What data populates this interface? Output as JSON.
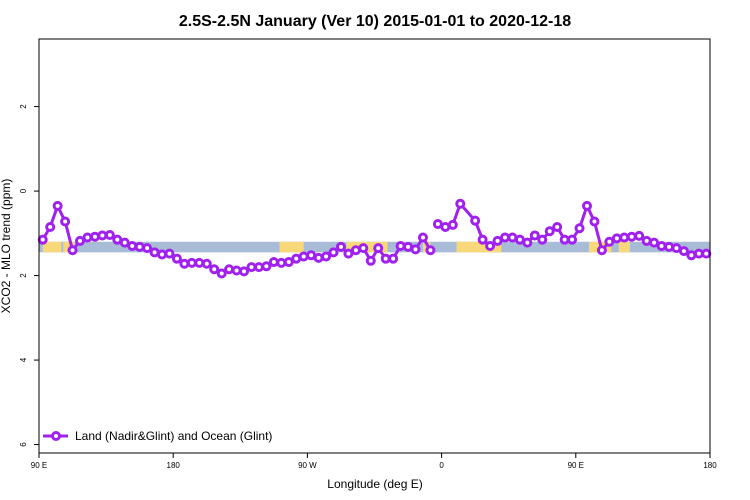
{
  "chart_data": {
    "type": "line",
    "title": "2.5S-2.5N January (Ver 10)   2015-01-01 to 2020-12-18",
    "xlabel": "Longitude (deg E)",
    "ylabel": "XCO2 - MLO trend (ppm)",
    "xlim": [
      90,
      450
    ],
    "ylim": [
      -6.2,
      3.6
    ],
    "x_ticks": [
      {
        "value": 90,
        "label": "90 E"
      },
      {
        "value": 162,
        "label": "180"
      },
      {
        "value": 234,
        "label": "90 W"
      },
      {
        "value": 306,
        "label": "0"
      },
      {
        "value": 378,
        "label": "90 E"
      },
      {
        "value": 450,
        "label": "180"
      }
    ],
    "y_ticks": [
      {
        "value": 2,
        "label": "2"
      },
      {
        "value": 0,
        "label": "0"
      },
      {
        "value": -2,
        "label": "2"
      },
      {
        "value": -4,
        "label": "4"
      },
      {
        "value": -6,
        "label": "6"
      }
    ],
    "legend": {
      "position": "bottom-left",
      "label": "Land (Nadir&Glint) and Ocean (Glint)"
    },
    "colors": {
      "series": "#a020f0",
      "ocean_band": "#a8bcd8",
      "land_band": "#f8d878"
    },
    "band": {
      "y_top": -1.2,
      "y_bottom": -1.45
    },
    "land_segments": [
      [
        92,
        102
      ],
      [
        103,
        109
      ],
      [
        219,
        232
      ],
      [
        255,
        277
      ],
      [
        296,
        298
      ],
      [
        299,
        300
      ],
      [
        314,
        338
      ],
      [
        385,
        397
      ],
      [
        401,
        407
      ]
    ],
    "series": [
      {
        "x": [
          92,
          96,
          100,
          104,
          108,
          112,
          116,
          120,
          124,
          128,
          132,
          136,
          140,
          144,
          148,
          152,
          156,
          160,
          164,
          168,
          172,
          176,
          180,
          184,
          188,
          192,
          196,
          200,
          204,
          208,
          212,
          216,
          220,
          224,
          228,
          232,
          236,
          240,
          244,
          248,
          252,
          256,
          260,
          264,
          268,
          272,
          276,
          280,
          284,
          288,
          292,
          296,
          300,
          304,
          308,
          312,
          316,
          324,
          328,
          332,
          336,
          340,
          344,
          348,
          352,
          356,
          360,
          364,
          368,
          372,
          376,
          380,
          384,
          388,
          392,
          396,
          400,
          404,
          408,
          412,
          416,
          420,
          424,
          428,
          432,
          436,
          440,
          444,
          448
        ],
        "y": [
          -1.15,
          -0.85,
          -0.35,
          -0.72,
          -1.4,
          -1.18,
          -1.1,
          -1.08,
          -1.05,
          -1.04,
          -1.15,
          -1.22,
          -1.3,
          -1.32,
          -1.35,
          -1.45,
          -1.5,
          -1.48,
          -1.6,
          -1.72,
          -1.7,
          -1.7,
          -1.72,
          -1.85,
          -1.95,
          -1.85,
          -1.88,
          -1.9,
          -1.8,
          -1.8,
          -1.78,
          -1.68,
          -1.7,
          -1.68,
          -1.6,
          -1.55,
          -1.52,
          -1.58,
          -1.55,
          -1.45,
          -1.32,
          -1.48,
          -1.4,
          -1.35,
          -1.65,
          -1.35,
          -1.6,
          -1.6,
          -1.3,
          -1.32,
          -1.38,
          -1.1,
          -1.4,
          -0.78,
          -0.85,
          -0.8,
          -0.3,
          -0.7,
          -1.15,
          -1.3,
          -1.18,
          -1.1,
          -1.1,
          -1.15,
          -1.22,
          -1.05,
          -1.15,
          -0.95,
          -0.85,
          -1.15,
          -1.15,
          -0.88,
          -0.35,
          -0.72,
          -1.4,
          -1.2,
          -1.12,
          -1.1,
          -1.08,
          -1.06,
          -1.18,
          -1.22,
          -1.3,
          -1.32,
          -1.35,
          -1.42,
          -1.52,
          -1.48,
          -1.48
        ],
        "breaks_after": [
          52
        ]
      }
    ]
  }
}
